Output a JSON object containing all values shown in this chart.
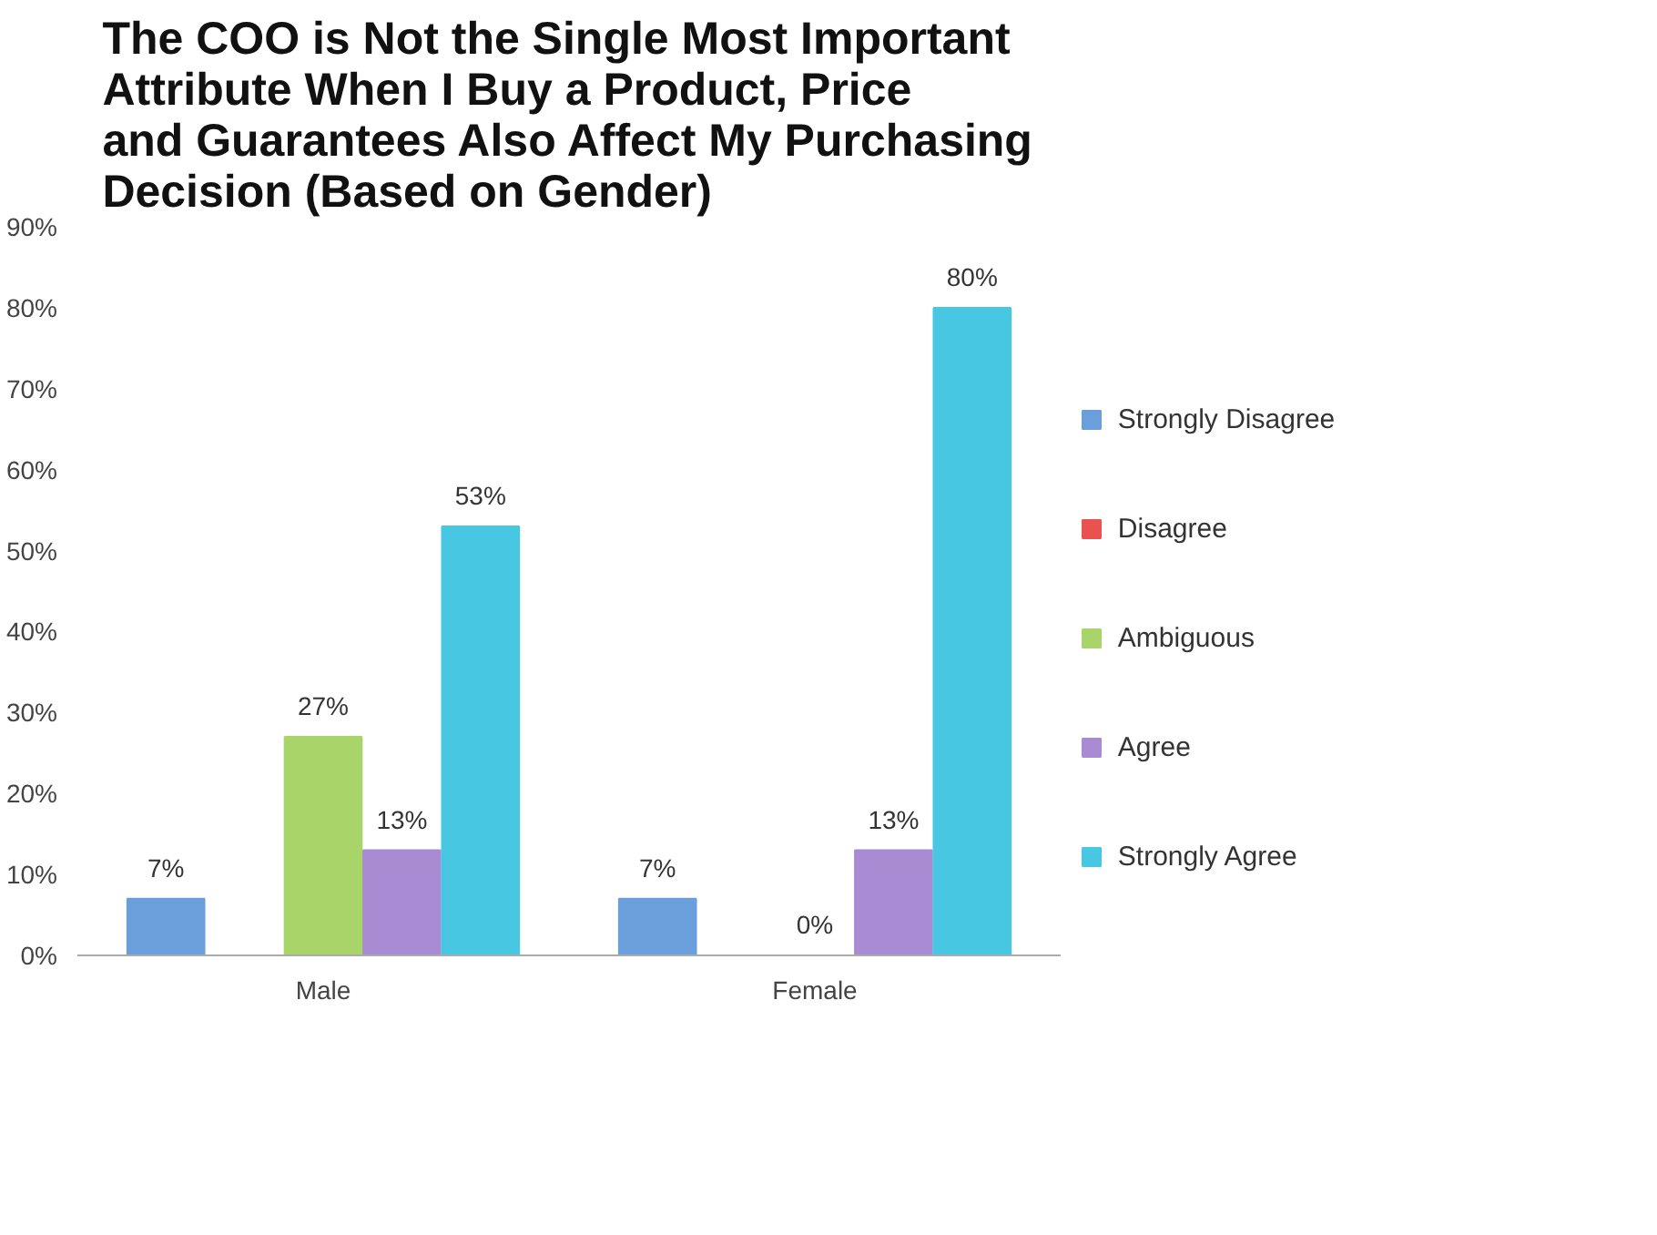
{
  "chart_data": {
    "type": "bar",
    "title": "The COO is Not the Single Most Important Attribute When I Buy a Product, Price and Guarantees Also Affect My Purchasing Decision (Based on Gender)",
    "categories": [
      "Male",
      "Female"
    ],
    "series": [
      {
        "name": "Strongly Disagree",
        "color": "#6a9fdc",
        "values": [
          7,
          7
        ],
        "value_labels": [
          "7%",
          "7%"
        ]
      },
      {
        "name": "Disagree",
        "color": "#e8534f",
        "values": [
          null,
          null
        ],
        "value_labels": [
          null,
          null
        ]
      },
      {
        "name": "Ambiguous",
        "color": "#a8d46a",
        "values": [
          27,
          0
        ],
        "value_labels": [
          "27%",
          "0%"
        ]
      },
      {
        "name": "Agree",
        "color": "#a88bd2",
        "values": [
          13,
          13
        ],
        "value_labels": [
          "13%",
          "13%"
        ]
      },
      {
        "name": "Strongly Agree",
        "color": "#47c7e2",
        "values": [
          53,
          80
        ],
        "value_labels": [
          "53%",
          "80%"
        ]
      }
    ],
    "ylim": [
      0,
      90
    ],
    "yticks": [
      {
        "value": 0,
        "label": "0%"
      },
      {
        "value": 10,
        "label": "10%"
      },
      {
        "value": 20,
        "label": "20%"
      },
      {
        "value": 30,
        "label": "30%"
      },
      {
        "value": 40,
        "label": "40%"
      },
      {
        "value": 50,
        "label": "50%"
      },
      {
        "value": 60,
        "label": "60%"
      },
      {
        "value": 70,
        "label": "70%"
      },
      {
        "value": 80,
        "label": "80%"
      },
      {
        "value": 90,
        "label": "90%"
      }
    ],
    "grid": false,
    "legend": "right"
  }
}
